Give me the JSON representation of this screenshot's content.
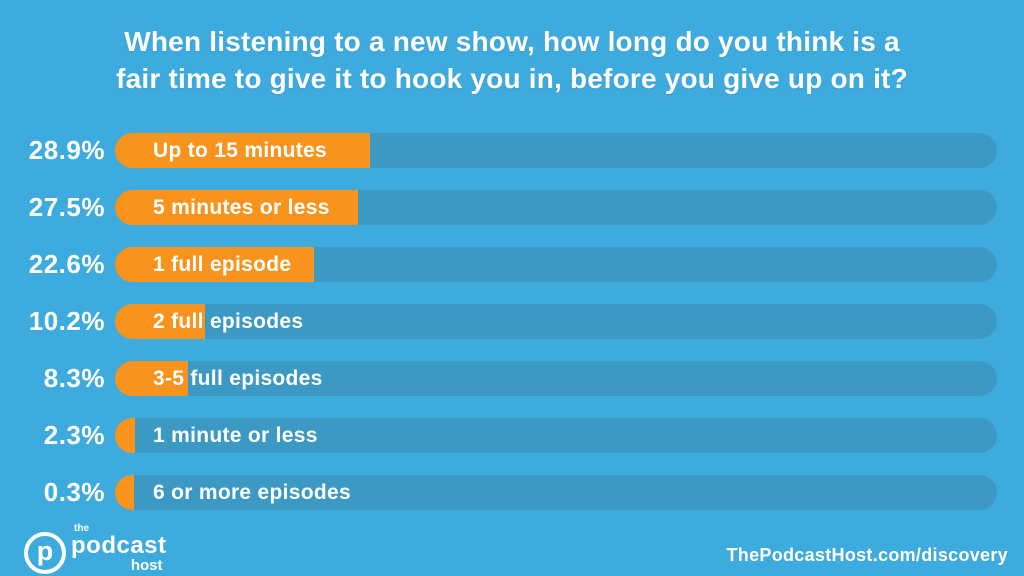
{
  "title": {
    "lines": [
      "When listening to a new show, how long do you think is a",
      "fair time to give it to hook you in, before you give up on it?"
    ]
  },
  "chart_data": {
    "type": "bar",
    "orientation": "horizontal",
    "title": "When listening to a new show, how long do you think is a fair time to give it to hook you in, before you give up on it?",
    "categories": [
      "Up to 15 minutes",
      "5 minutes or less",
      "1 full episode",
      "2 full episodes",
      "3-5 full episodes",
      "1 minute or less",
      "6 or more episodes"
    ],
    "values": [
      28.9,
      27.5,
      22.6,
      10.2,
      8.3,
      2.3,
      0.3
    ],
    "value_labels": [
      "28.9%",
      "27.5%",
      "22.6%",
      "10.2%",
      "8.3%",
      "2.3%",
      "0.3%"
    ],
    "xlim": [
      0,
      100
    ],
    "grid": false,
    "legend": false,
    "bar_color": "#F8941D",
    "track_color": "#3B99C3",
    "background_color": "#3EABDF",
    "text_color": "#FFFFFF"
  },
  "footer": {
    "logo": {
      "the": "the",
      "podcast": "podcast",
      "host": "host",
      "icon_letter": "p"
    },
    "url": "ThePodcastHost.com/discovery"
  }
}
